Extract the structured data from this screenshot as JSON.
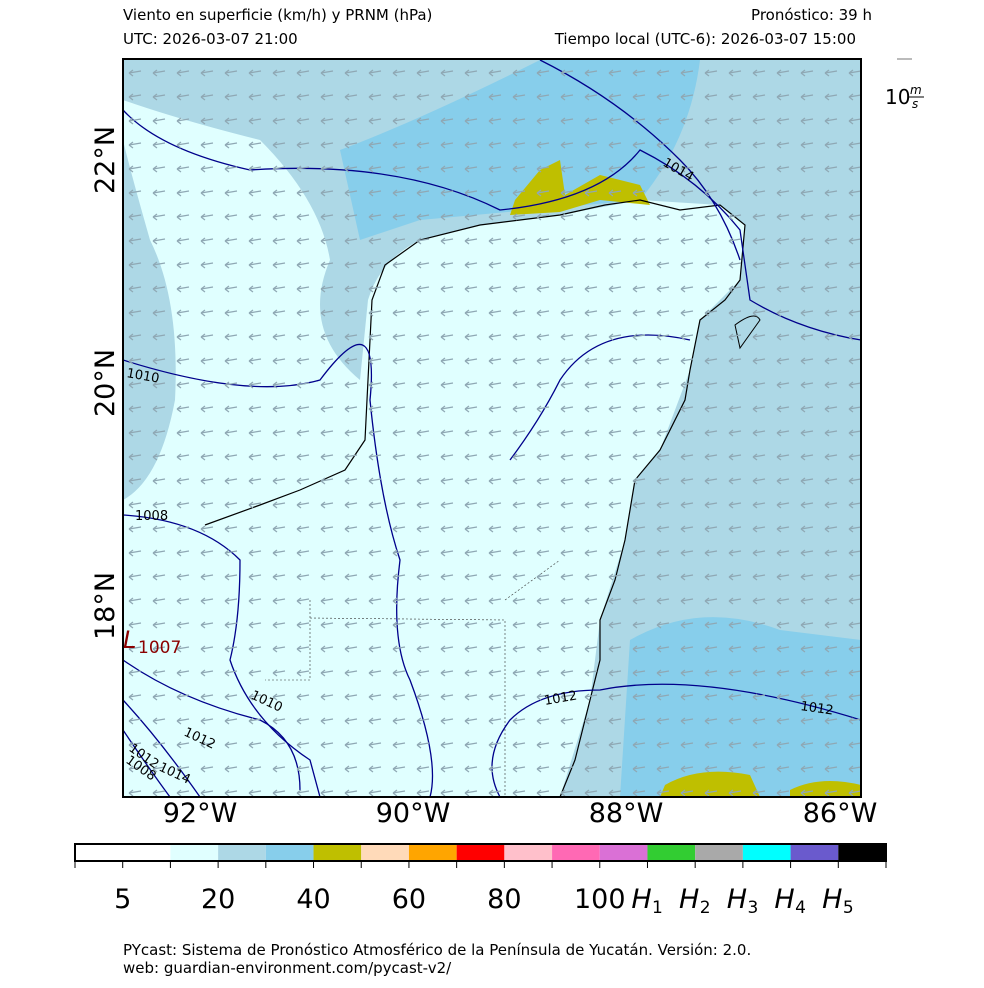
{
  "header": {
    "title": "Viento en superficie (km/h) y PRNM (hPa)",
    "utc": "UTC:  2026-03-07 21:00",
    "forecast": "Pronóstico: 39 h",
    "local_time": "Tiempo local (UTC-6): 2026-03-07 15:00"
  },
  "wind_key": {
    "number": "10",
    "unit_top": "m",
    "unit_bottom": "s"
  },
  "map": {
    "lat_labels": [
      "22°N",
      "20°N",
      "18°N"
    ],
    "lon_labels": [
      "92°W",
      "90°W",
      "88°W",
      "86°W"
    ],
    "isobar_labels": [
      "1014",
      "1010",
      "1008",
      "1010",
      "1012",
      "1012",
      "1014",
      "1012",
      "1012",
      "1008"
    ],
    "low": {
      "letter": "L",
      "value": "1007"
    }
  },
  "colorbar": {
    "colors": [
      "#ffffff",
      "#ffffff",
      "#e0ffff",
      "#add8e6",
      "#87ceeb",
      "#bfbf00",
      "#ffdab9",
      "#ffa500",
      "#ff0000",
      "#ffc0cb",
      "#ff69b4",
      "#da70d6",
      "#32cd32",
      "#a9a9a9",
      "#00ffff",
      "#6a5acd",
      "#000000"
    ],
    "labels": [
      "5",
      "20",
      "40",
      "60",
      "80",
      "100"
    ],
    "hazard_labels": [
      {
        "letter": "H",
        "index": "1"
      },
      {
        "letter": "H",
        "index": "2"
      },
      {
        "letter": "H",
        "index": "3"
      },
      {
        "letter": "H",
        "index": "4"
      },
      {
        "letter": "H",
        "index": "5"
      }
    ]
  },
  "footer": {
    "line1": "PYcast: Sistema de Pronóstico Atmosférico de la Península de Yucatán. Versión: 2.0.",
    "line2": "web: guardian-environment.com/pycast-v2/"
  }
}
